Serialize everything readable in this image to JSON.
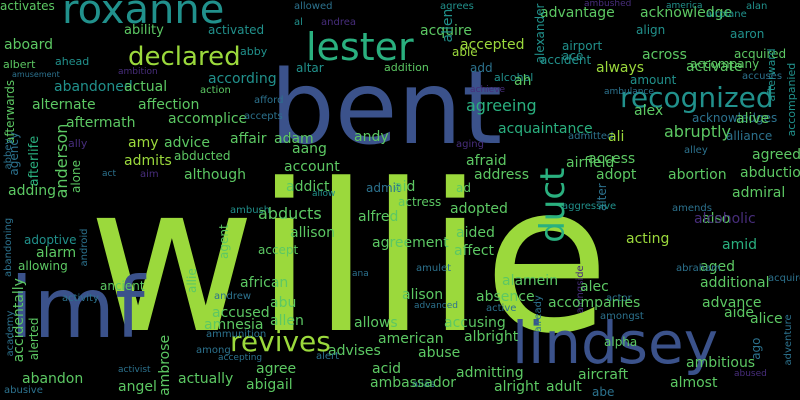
{
  "palette": {
    "lime": "#9bd93c",
    "green": "#5cc863",
    "teal": "#2ab07f",
    "cyan": "#21918c",
    "slate": "#2c728e",
    "blue": "#3b528b",
    "indigo": "#472d7b",
    "purple": "#440154",
    "background": "#000000"
  },
  "words": [
    "willie",
    "bent",
    "imf",
    "lindsey",
    "roxanne",
    "lester",
    "declared",
    "recognized",
    "revives",
    "duct",
    "accepted",
    "acquire",
    "acknowledge",
    "advantage",
    "airplane",
    "agrees",
    "ambushed",
    "america",
    "alan",
    "andrea",
    "allowed",
    "al",
    "alien",
    "alexander",
    "aaron",
    "align",
    "airport",
    "accident",
    "accompany",
    "aboard",
    "ability",
    "activated",
    "acquired",
    "abby",
    "albert",
    "ahead",
    "able",
    "add",
    "ace",
    "across",
    "afterward",
    "amusement",
    "ambition",
    "always",
    "activate",
    "accuses",
    "altar",
    "addition",
    "alcohol",
    "ah",
    "achieve",
    "ambulance",
    "amount",
    "afterwards",
    "abandoned",
    "actual",
    "according",
    "action",
    "agreeing",
    "accompanied",
    "alternate",
    "affection",
    "afford",
    "alex",
    "afterlife",
    "aftermath",
    "accomplice",
    "accepts",
    "andy",
    "acquaintance",
    "acknowledges",
    "alive",
    "advice",
    "abruptly",
    "alliance",
    "affair",
    "adam",
    "admitted",
    "aging",
    "ali",
    "ally",
    "amy",
    "aang",
    "alley",
    "agreed",
    "admits",
    "abducted",
    "airfield",
    "access",
    "abduction",
    "abbey",
    "anderson",
    "act",
    "aim",
    "although",
    "account",
    "afraid",
    "address",
    "adopt",
    "abortion",
    "admiral",
    "agency",
    "alone",
    "adding",
    "addict",
    "admit",
    "aid",
    "ad",
    "allow",
    "ambush",
    "alter",
    "also",
    "abducts",
    "actress",
    "alfred",
    "adopted",
    "aggressive",
    "amends",
    "amid",
    "alcoholic",
    "abandoning",
    "android",
    "allison",
    "agent",
    "aided",
    "acting",
    "adoptive",
    "alarm",
    "accept",
    "agreement",
    "affect",
    "allowing",
    "allie",
    "aged",
    "abraham",
    "ana",
    "alongside",
    "amulet",
    "alamein",
    "african",
    "additional",
    "acquires",
    "ancient",
    "activity",
    "andrew",
    "alison",
    "absence",
    "actor",
    "alec",
    "accidentally",
    "accused",
    "abu",
    "accompanies",
    "advance",
    "academy",
    "allen",
    "advanced",
    "already",
    "amongst",
    "amnesia",
    "allows",
    "accusing",
    "active",
    "aide",
    "alerted",
    "alice",
    "adventure",
    "ammunition",
    "among",
    "american",
    "albright",
    "advises",
    "abuse",
    "accepting",
    "alpha",
    "ambitious",
    "alert",
    "ago",
    "agree",
    "abandon",
    "actually",
    "abigail",
    "admitting",
    "activist",
    "ambrose",
    "acid",
    "aircraft",
    "abused",
    "angel",
    "alias",
    "alright",
    "adult",
    "abe",
    "almost",
    "abusive",
    "ambassador",
    "activates"
  ]
}
